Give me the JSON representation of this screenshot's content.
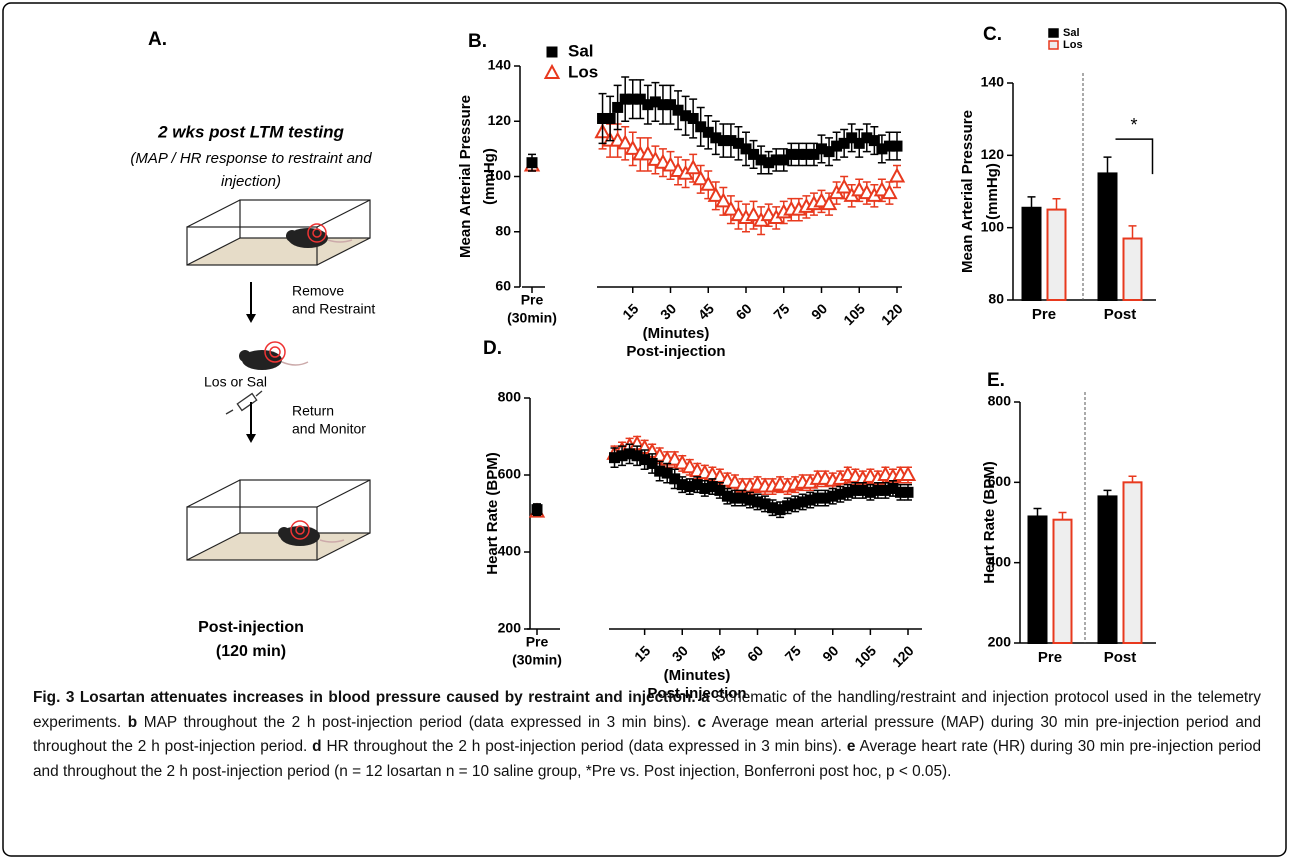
{
  "panel_a": {
    "label": "A.",
    "title": "2 wks post LTM testing",
    "subtitle": [
      "(MAP /  HR response to restraint and",
      "injection)"
    ],
    "step1": [
      "Remove",
      "and Restraint"
    ],
    "drug": "Los or Sal",
    "step2": [
      "Return",
      "and Monitor"
    ],
    "footer": [
      "Post-injection",
      "(120 min)"
    ]
  },
  "chart_data": [
    {
      "type": "line",
      "panel": "B.",
      "ylabel": [
        "Mean  Arterial Pressure",
        "(mmHg)"
      ],
      "xlabel": [
        "(Minutes)",
        "Post-injection"
      ],
      "pre_label": [
        "Pre",
        "(30min)"
      ],
      "ylim": [
        60,
        140
      ],
      "yticks": [
        60,
        80,
        100,
        120,
        140
      ],
      "xlim": [
        0,
        120
      ],
      "xticks": [
        15,
        30,
        45,
        60,
        75,
        90,
        105,
        120
      ],
      "x": [
        3,
        6,
        9,
        12,
        15,
        18,
        21,
        24,
        27,
        30,
        33,
        36,
        39,
        42,
        45,
        48,
        51,
        54,
        57,
        60,
        63,
        66,
        69,
        72,
        75,
        78,
        81,
        84,
        87,
        90,
        93,
        96,
        99,
        102,
        105,
        108,
        111,
        114,
        117,
        120
      ],
      "series": [
        {
          "name": "Sal",
          "color": "#000000",
          "marker": "square",
          "pre_value": 105,
          "pre_error": 3,
          "values": [
            121,
            121,
            125,
            128,
            128,
            128,
            126,
            127,
            126,
            126,
            124,
            122,
            121,
            118,
            116,
            114,
            113,
            113,
            112,
            110,
            108,
            106,
            105,
            106,
            106,
            108,
            108,
            108,
            108,
            110,
            109,
            111,
            112,
            114,
            112,
            114,
            113,
            110,
            111,
            111
          ],
          "errors": [
            9,
            8,
            8,
            8,
            7,
            7,
            7,
            7,
            7,
            7,
            7,
            7,
            7,
            7,
            6,
            6,
            6,
            6,
            6,
            6,
            5,
            5,
            4,
            4,
            4,
            4,
            4,
            4,
            4,
            5,
            5,
            5,
            5,
            5,
            5,
            5,
            5,
            5,
            5,
            5
          ]
        },
        {
          "name": "Los",
          "color": "#e8391e",
          "marker": "triangle",
          "pre_value": 104,
          "pre_error": 2,
          "values": [
            116,
            113,
            113,
            112,
            110,
            108,
            108,
            106,
            105,
            104,
            102,
            101,
            103,
            99,
            97,
            93,
            91,
            88,
            86,
            85,
            86,
            84,
            86,
            85,
            87,
            88,
            88,
            89,
            90,
            91,
            90,
            94,
            96,
            93,
            95,
            94,
            93,
            95,
            94,
            100
          ],
          "errors": [
            6,
            6,
            6,
            6,
            6,
            6,
            6,
            5,
            5,
            5,
            5,
            5,
            5,
            5,
            5,
            5,
            5,
            5,
            5,
            5,
            5,
            5,
            4,
            4,
            4,
            4,
            4,
            4,
            4,
            4,
            4,
            4,
            4,
            4,
            4,
            4,
            4,
            4,
            4,
            4
          ]
        }
      ]
    },
    {
      "type": "bar",
      "panel": "C.",
      "ylabel": [
        "Mean  Arterial Pressure",
        "(mmHg)"
      ],
      "categories": [
        "Pre",
        "Post"
      ],
      "ylim": [
        80,
        140
      ],
      "yticks": [
        80,
        100,
        120,
        140
      ],
      "annotation": "*",
      "series": [
        {
          "name": "Sal",
          "color": "#000000",
          "fill": "#000000",
          "values": [
            105.5,
            115
          ],
          "errors": [
            3,
            4.5
          ]
        },
        {
          "name": "Los",
          "color": "#e8391e",
          "fill": "#eeeeee",
          "values": [
            105,
            97
          ],
          "errors": [
            3,
            3.5
          ]
        }
      ]
    },
    {
      "type": "line",
      "panel": "D.",
      "ylabel": [
        "Heart Rate (BPM)"
      ],
      "xlabel": [
        "(Minutes)",
        "Post-injection"
      ],
      "pre_label": [
        "Pre",
        "(30min)"
      ],
      "ylim": [
        200,
        800
      ],
      "yticks": [
        200,
        400,
        600,
        800
      ],
      "xlim": [
        0,
        120
      ],
      "xticks": [
        15,
        30,
        45,
        60,
        75,
        90,
        105,
        120
      ],
      "x": [
        3,
        6,
        9,
        12,
        15,
        18,
        21,
        24,
        27,
        30,
        33,
        36,
        39,
        42,
        45,
        48,
        51,
        54,
        57,
        60,
        63,
        66,
        69,
        72,
        75,
        78,
        81,
        84,
        87,
        90,
        93,
        96,
        99,
        102,
        105,
        108,
        111,
        114,
        117,
        120
      ],
      "series": [
        {
          "name": "Sal",
          "color": "#000000",
          "marker": "square",
          "pre_value": 510,
          "pre_error": 15,
          "values": [
            645,
            650,
            655,
            650,
            640,
            630,
            610,
            605,
            590,
            575,
            570,
            575,
            565,
            570,
            560,
            545,
            540,
            540,
            535,
            530,
            525,
            515,
            510,
            520,
            525,
            530,
            535,
            540,
            540,
            545,
            550,
            555,
            560,
            560,
            555,
            560,
            560,
            565,
            555,
            555
          ],
          "errors": [
            25,
            25,
            25,
            25,
            25,
            25,
            25,
            25,
            25,
            20,
            20,
            20,
            20,
            20,
            20,
            20,
            20,
            20,
            20,
            20,
            20,
            20,
            20,
            20,
            20,
            20,
            20,
            20,
            20,
            20,
            20,
            20,
            20,
            20,
            20,
            20,
            20,
            20,
            20,
            20
          ]
        },
        {
          "name": "Los",
          "color": "#e8391e",
          "marker": "triangle",
          "pre_value": 505,
          "pre_error": 10,
          "values": [
            655,
            665,
            675,
            680,
            670,
            660,
            650,
            640,
            640,
            630,
            620,
            610,
            605,
            600,
            595,
            585,
            580,
            570,
            570,
            575,
            570,
            570,
            575,
            570,
            575,
            580,
            580,
            590,
            590,
            585,
            590,
            600,
            595,
            590,
            595,
            590,
            600,
            595,
            600,
            600
          ],
          "errors": [
            20,
            20,
            20,
            20,
            20,
            20,
            20,
            20,
            20,
            20,
            20,
            20,
            20,
            20,
            20,
            20,
            20,
            20,
            20,
            20,
            20,
            20,
            20,
            20,
            20,
            20,
            20,
            20,
            20,
            20,
            20,
            20,
            20,
            20,
            20,
            20,
            20,
            20,
            20,
            20
          ]
        }
      ]
    },
    {
      "type": "bar",
      "panel": "E.",
      "ylabel": [
        "Heart Rate (BPM)"
      ],
      "categories": [
        "Pre",
        "Post"
      ],
      "ylim": [
        200,
        800
      ],
      "yticks": [
        200,
        400,
        600,
        800
      ],
      "series": [
        {
          "name": "Sal",
          "color": "#000000",
          "fill": "#000000",
          "values": [
            515,
            565
          ],
          "errors": [
            20,
            15
          ]
        },
        {
          "name": "Los",
          "color": "#e8391e",
          "fill": "#eeeeee",
          "values": [
            507,
            600
          ],
          "errors": [
            18,
            15
          ]
        }
      ]
    }
  ],
  "caption": {
    "title": "Fig. 3 Losartan attenuates increases in blood pressure caused by restraint and injection.",
    "parts": [
      {
        "label": "a",
        "text": "Schematic of the handling/restraint and injection protocol used in the telemetry experiments."
      },
      {
        "label": "b",
        "text": "MAP throughout the 2 h post-injection period (data expressed in 3 min bins)."
      },
      {
        "label": "c",
        "text": "Average mean arterial pressure (MAP) during 30 min pre-injection period and throughout the 2 h post-injection period."
      },
      {
        "label": "d",
        "text": "HR throughout the 2 h post-injection period (data expressed in 3 min bins)."
      },
      {
        "label": "e",
        "text": "Average heart rate (HR) during 30 min pre-injection period and throughout the 2 h post-injection period (n = 12 losartan n = 10 saline group, *Pre vs. Post injection, Bonferroni post hoc, p < 0.05)."
      }
    ]
  }
}
